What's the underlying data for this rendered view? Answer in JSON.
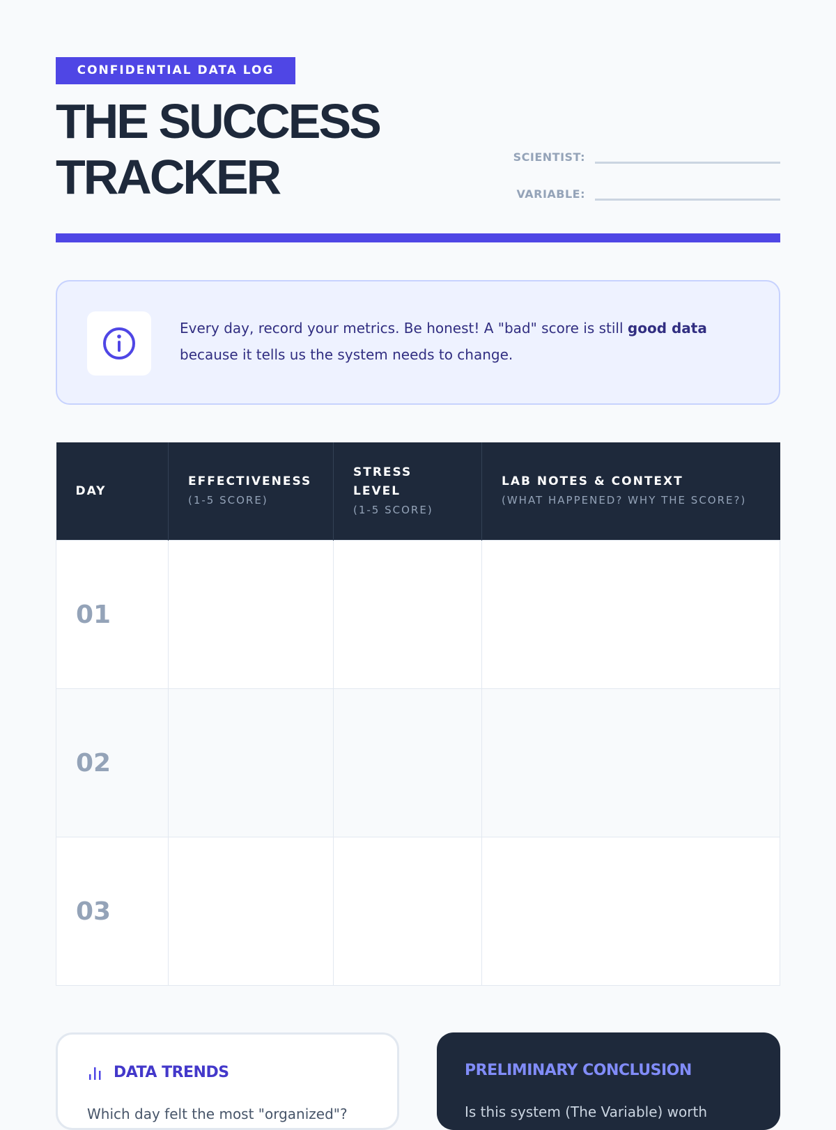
{
  "header": {
    "badge": "CONFIDENTIAL DATA LOG",
    "title_line1": "THE SUCCESS",
    "title_line2": "TRACKER",
    "fields": [
      {
        "label": "SCIENTIST:"
      },
      {
        "label": "VARIABLE:"
      }
    ]
  },
  "info": {
    "icon": "info-icon",
    "text_before": "Every day, record your metrics. Be honest! A \"bad\" score is still ",
    "text_bold": "good data",
    "text_after": " because it tells us the system needs to change."
  },
  "table": {
    "columns": [
      {
        "title": "DAY",
        "sub": ""
      },
      {
        "title": "EFFECTIVENESS",
        "sub": "(1-5 SCORE)"
      },
      {
        "title": "STRESS LEVEL",
        "sub": "(1-5 SCORE)"
      },
      {
        "title": "LAB NOTES & CONTEXT",
        "sub": "(WHAT HAPPENED? WHY THE SCORE?)"
      }
    ],
    "rows": [
      {
        "day": "01"
      },
      {
        "day": "02"
      },
      {
        "day": "03"
      }
    ]
  },
  "cards": {
    "trends": {
      "icon": "bar-chart-icon",
      "title": "DATA TRENDS",
      "text": "Which day felt the most \"organized\"?"
    },
    "conclusion": {
      "title": "PRELIMINARY CONCLUSION",
      "text": "Is this system (The Variable) worth"
    }
  },
  "colors": {
    "accent": "#4f46e5",
    "dark": "#1e293b",
    "muted": "#94a3b8"
  }
}
